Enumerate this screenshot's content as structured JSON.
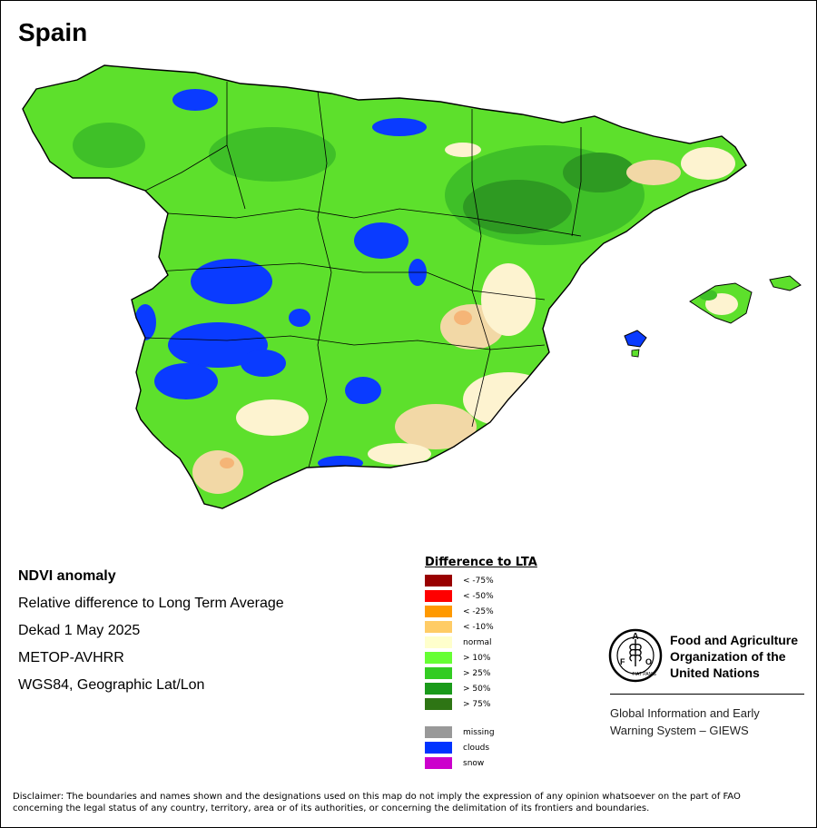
{
  "map": {
    "title": "Spain",
    "colors": {
      "land_base": "#5de02c",
      "land_dark": "#3fc028",
      "land_darker": "#2e9a22",
      "normal": "#fdf3d0",
      "tan": "#f2d8a6",
      "clouds": "#0a3bff",
      "mild_neg": "#f5b577",
      "boundary": "#000000"
    }
  },
  "info": {
    "heading": "NDVI anomaly",
    "lines": [
      "Relative difference to Long Term Average",
      "Dekad 1 May 2025",
      "METOP-AVHRR",
      "WGS84, Geographic Lat/Lon"
    ]
  },
  "legend": {
    "title": "Difference to LTA",
    "items": [
      {
        "label": "< -75%",
        "color": "#990000"
      },
      {
        "label": "< -50%",
        "color": "#ff0000"
      },
      {
        "label": "< -25%",
        "color": "#ff9900"
      },
      {
        "label": "< -10%",
        "color": "#ffcc66"
      },
      {
        "label": "normal",
        "color": "#ffffcc"
      },
      {
        "label": "> 10%",
        "color": "#66ff33"
      },
      {
        "label": "> 25%",
        "color": "#33cc22"
      },
      {
        "label": "> 50%",
        "color": "#1a9a1a"
      },
      {
        "label": "> 75%",
        "color": "#2e7514"
      }
    ],
    "extras": [
      {
        "label": "missing",
        "color": "#999999"
      },
      {
        "label": "clouds",
        "color": "#0033ff"
      },
      {
        "label": "snow",
        "color": "#cc00cc"
      }
    ]
  },
  "fao": {
    "name_lines": [
      "Food and Agriculture",
      "Organization of the",
      "United Nations"
    ],
    "system_lines": [
      "Global Information and Early",
      "Warning System – GIEWS"
    ],
    "logo_letters": "FAO",
    "logo_motto": "FIAT PANIS"
  },
  "disclaimer": {
    "lines": [
      "Disclaimer: The boundaries and names shown and the designations used on this map do not imply the expression of any opinion whatsoever on the part of FAO",
      "concerning the legal status of any country, territory, area or of its authorities, or concerning the delimitation of its frontiers and boundaries."
    ]
  }
}
